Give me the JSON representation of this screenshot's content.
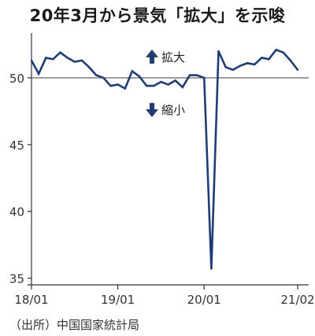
{
  "title": "20年3月から景気「拡大」を示唆",
  "source": "（出所）中国国家統計局",
  "colors": {
    "line": "#1f3d73",
    "axis": "#333333",
    "reference": "#555555",
    "arrow": "#1f3d73"
  },
  "chart_data": {
    "type": "line",
    "title": "20年3月から景気「拡大」を示唆",
    "xlabel": "",
    "ylabel": "",
    "x_ticks": [
      "18/01",
      "19/01",
      "20/01",
      "21/02"
    ],
    "y_ticks": [
      35,
      40,
      45,
      50
    ],
    "ylim": [
      34.5,
      53
    ],
    "reference_line": 50,
    "annotations": [
      {
        "text": "拡大",
        "direction": "up"
      },
      {
        "text": "縮小",
        "direction": "down"
      }
    ],
    "series": [
      {
        "x": [
          "2018-01",
          "2018-02",
          "2018-03",
          "2018-04",
          "2018-05",
          "2018-06",
          "2018-07",
          "2018-08",
          "2018-09",
          "2018-10",
          "2018-11",
          "2018-12",
          "2019-01",
          "2019-02",
          "2019-03",
          "2019-04",
          "2019-05",
          "2019-06",
          "2019-07",
          "2019-08",
          "2019-09",
          "2019-10",
          "2019-11",
          "2019-12",
          "2020-01",
          "2020-02",
          "2020-03",
          "2020-04",
          "2020-05",
          "2020-06",
          "2020-07",
          "2020-08",
          "2020-09",
          "2020-10",
          "2020-11",
          "2020-12",
          "2021-01",
          "2021-02"
        ],
        "values": [
          51.3,
          50.3,
          51.5,
          51.4,
          51.9,
          51.5,
          51.2,
          51.3,
          50.8,
          50.2,
          50.0,
          49.4,
          49.5,
          49.2,
          50.5,
          50.1,
          49.4,
          49.4,
          49.7,
          49.5,
          49.8,
          49.3,
          50.2,
          50.2,
          50.0,
          35.7,
          52.0,
          50.8,
          50.6,
          50.9,
          51.1,
          51.0,
          51.5,
          51.4,
          52.1,
          51.9,
          51.3,
          50.6
        ]
      }
    ]
  }
}
